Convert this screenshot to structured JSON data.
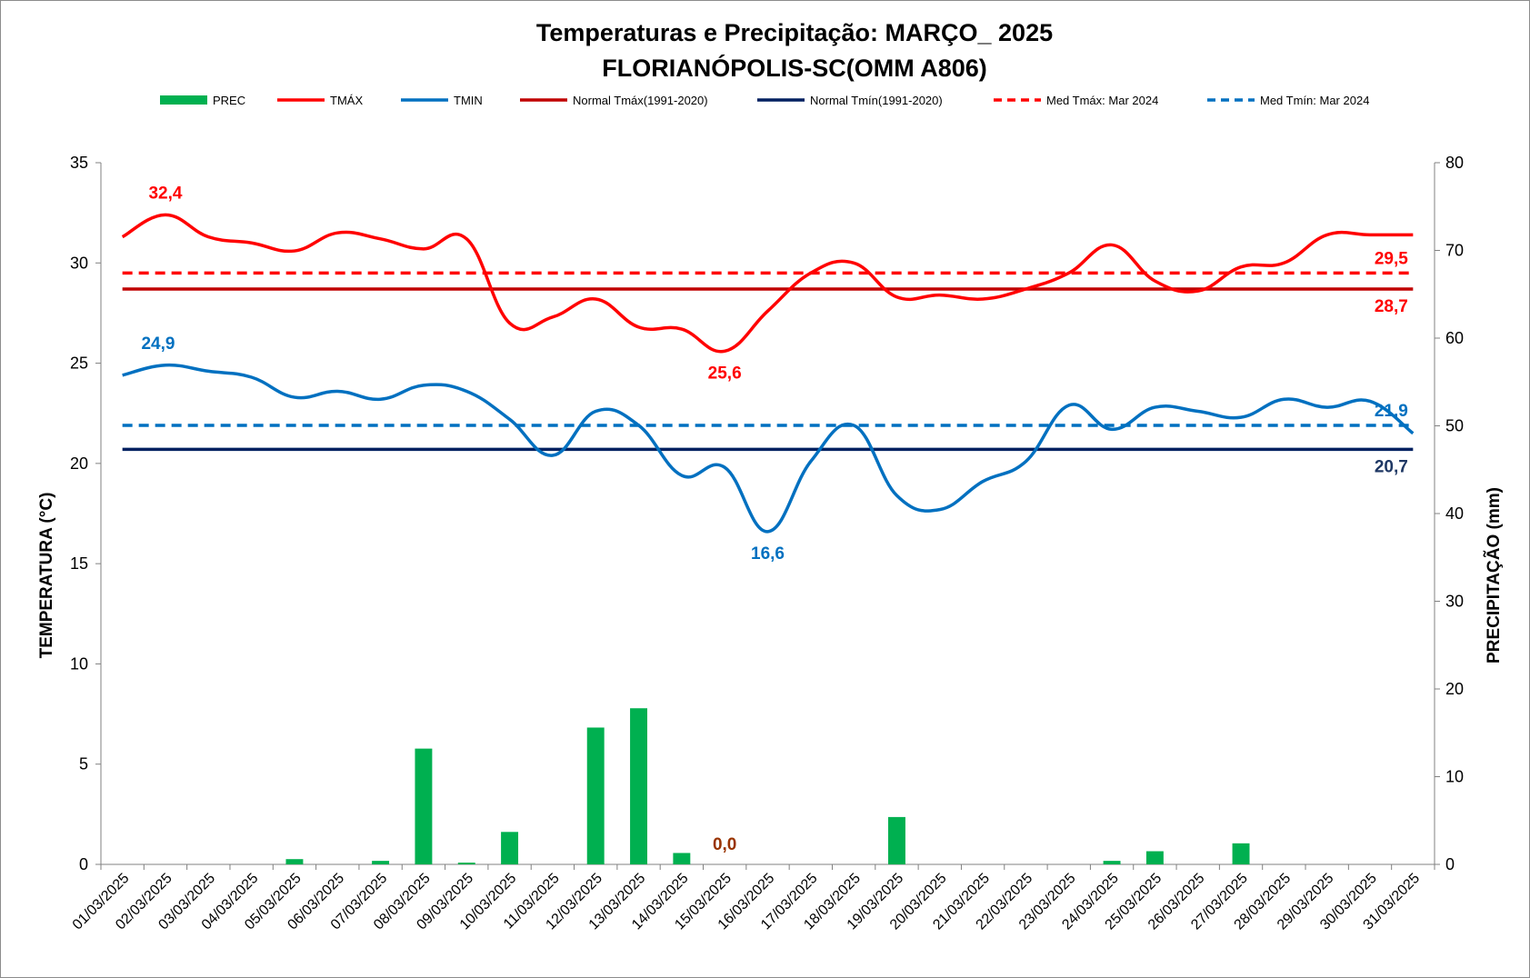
{
  "chart_data": {
    "type": "line",
    "title": "Temperaturas e Precipitação: MARÇO_ 2025",
    "subtitle": "FLORIANÓPOLIS-SC(OMM  A806)",
    "ylabel": "TEMPERATURA  (°C)",
    "y2label": "PRECIPITAÇÃO  (mm)",
    "ylim": [
      0,
      35
    ],
    "y2lim": [
      0,
      80
    ],
    "yticks": [
      "0",
      "5",
      "10",
      "15",
      "20",
      "25",
      "30",
      "35"
    ],
    "y2ticks": [
      "0",
      "10",
      "20",
      "30",
      "40",
      "50",
      "60",
      "70",
      "80"
    ],
    "grid": false,
    "legend_position": "top",
    "categories": [
      "01/03/2025",
      "02/03/2025",
      "03/03/2025",
      "04/03/2025",
      "05/03/2025",
      "06/03/2025",
      "07/03/2025",
      "08/03/2025",
      "09/03/2025",
      "10/03/2025",
      "11/03/2025",
      "12/03/2025",
      "13/03/2025",
      "14/03/2025",
      "15/03/2025",
      "16/03/2025",
      "17/03/2025",
      "18/03/2025",
      "19/03/2025",
      "20/03/2025",
      "21/03/2025",
      "22/03/2025",
      "23/03/2025",
      "24/03/2025",
      "25/03/2025",
      "26/03/2025",
      "27/03/2025",
      "28/03/2025",
      "29/03/2025",
      "30/03/2025",
      "31/03/2025"
    ],
    "series": [
      {
        "name": "PREC",
        "type": "bar",
        "axis": "right",
        "color": "#00b050",
        "values": [
          0,
          0,
          0,
          0,
          0.6,
          0,
          0.4,
          13.2,
          0.2,
          3.7,
          0,
          15.6,
          17.8,
          1.3,
          0,
          0,
          0,
          0,
          5.4,
          0,
          0,
          0,
          0,
          0.4,
          1.5,
          0,
          2.4,
          0,
          0,
          0,
          0
        ]
      },
      {
        "name": "TMÁX",
        "type": "line",
        "smooth": true,
        "color": "#ff0000",
        "values": [
          31.3,
          32.4,
          31.3,
          31.0,
          30.6,
          31.5,
          31.2,
          30.7,
          31.2,
          27.0,
          27.3,
          28.2,
          26.8,
          26.7,
          25.6,
          27.6,
          29.5,
          30.0,
          28.3,
          28.4,
          28.2,
          28.7,
          29.5,
          30.9,
          29.1,
          28.6,
          29.8,
          30.0,
          31.4,
          31.4,
          31.4
        ]
      },
      {
        "name": "TMIN",
        "type": "line",
        "smooth": true,
        "color": "#0070c0",
        "values": [
          24.4,
          24.9,
          24.6,
          24.3,
          23.3,
          23.6,
          23.2,
          23.9,
          23.6,
          22.2,
          20.4,
          22.6,
          21.9,
          19.4,
          19.8,
          16.6,
          20.1,
          21.9,
          18.4,
          17.7,
          19.1,
          20.1,
          22.9,
          21.7,
          22.8,
          22.6,
          22.3,
          23.2,
          22.8,
          23.1,
          21.5
        ]
      },
      {
        "name": "Normal Tmáx(1991-2020)",
        "type": "line",
        "color": "#c00000",
        "value": 28.7
      },
      {
        "name": "Normal Tmín(1991-2020)",
        "type": "line",
        "color": "#002060",
        "value": 20.7
      },
      {
        "name": "Med Tmáx: Mar 2024",
        "type": "line",
        "dashed": true,
        "color": "#ff0000",
        "value": 29.5
      },
      {
        "name": "Med Tmín: Mar 2024",
        "type": "line",
        "dashed": true,
        "color": "#0070c0",
        "value": 21.9
      }
    ],
    "annotations": [
      {
        "text": "32,4",
        "series": "TMÁX",
        "index": 1,
        "color": "#ff0000"
      },
      {
        "text": "25,6",
        "series": "TMÁX",
        "index": 14,
        "color": "#ff0000"
      },
      {
        "text": "29,5",
        "series": "Med Tmáx: Mar 2024",
        "index": 30,
        "color": "#ff0000"
      },
      {
        "text": "28,7",
        "series": "Normal Tmáx(1991-2020)",
        "index": 30,
        "color": "#ff0000"
      },
      {
        "text": "24,9",
        "series": "TMIN",
        "index": 1,
        "color": "#0070c0"
      },
      {
        "text": "16,6",
        "series": "TMIN",
        "index": 15,
        "color": "#0070c0"
      },
      {
        "text": "21,9",
        "series": "Med Tmín: Mar 2024",
        "index": 30,
        "color": "#0070c0"
      },
      {
        "text": "20,7",
        "series": "Normal Tmín(1991-2020)",
        "index": 30,
        "color": "#1f3864"
      },
      {
        "text": "0,0",
        "series": "PREC",
        "index": 14,
        "color": "#993300"
      }
    ]
  }
}
